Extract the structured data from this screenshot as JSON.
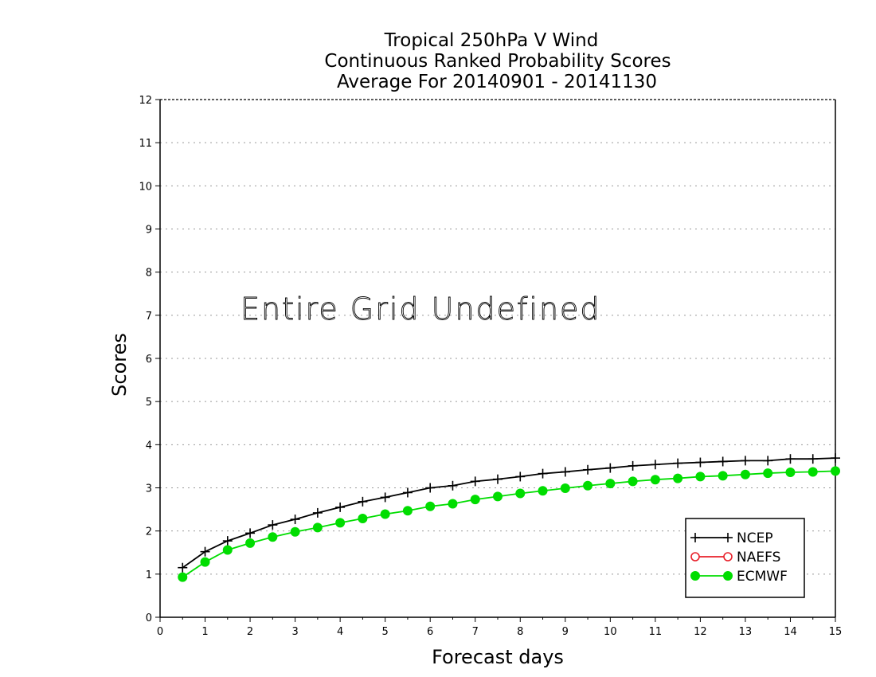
{
  "chart_data": {
    "type": "line",
    "title_lines": [
      "Tropical 250hPa V Wind",
      "Continuous Ranked Probability Scores",
      "Average For 20140901 - 20141130"
    ],
    "xlabel": "Forecast days",
    "ylabel": "Scores",
    "xlim": [
      0,
      15
    ],
    "ylim": [
      0,
      12
    ],
    "xticks": [
      0,
      1,
      2,
      3,
      4,
      5,
      6,
      7,
      8,
      9,
      10,
      11,
      12,
      13,
      14,
      15
    ],
    "yticks": [
      0,
      1,
      2,
      3,
      4,
      5,
      6,
      7,
      8,
      9,
      10,
      11,
      12
    ],
    "grid": true,
    "annotation": "Entire Grid Undefined",
    "legend_position": "bottom-right",
    "series": [
      {
        "name": "NCEP",
        "color": "#000000",
        "marker": "plus",
        "x": [
          0.5,
          1,
          1.5,
          2,
          2.5,
          3,
          3.5,
          4,
          4.5,
          5,
          5.5,
          6,
          6.5,
          7,
          7.5,
          8,
          8.5,
          9,
          9.5,
          10,
          10.5,
          11,
          11.5,
          12,
          12.5,
          13,
          13.5,
          14,
          14.5,
          15
        ],
        "y": [
          1.15,
          1.52,
          1.77,
          1.95,
          2.14,
          2.27,
          2.42,
          2.55,
          2.68,
          2.78,
          2.89,
          3.0,
          3.05,
          3.15,
          3.2,
          3.26,
          3.33,
          3.37,
          3.42,
          3.46,
          3.51,
          3.54,
          3.57,
          3.59,
          3.61,
          3.63,
          3.63,
          3.67,
          3.67,
          3.69
        ]
      },
      {
        "name": "NAEFS",
        "color": "#e8202a",
        "marker": "open-circle",
        "x": [],
        "y": []
      },
      {
        "name": "ECMWF",
        "color": "#00dd00",
        "marker": "filled-circle",
        "x": [
          0.5,
          1,
          1.5,
          2,
          2.5,
          3,
          3.5,
          4,
          4.5,
          5,
          5.5,
          6,
          6.5,
          7,
          7.5,
          8,
          8.5,
          9,
          9.5,
          10,
          10.5,
          11,
          11.5,
          12,
          12.5,
          13,
          13.5,
          14,
          14.5,
          15
        ],
        "y": [
          0.93,
          1.28,
          1.56,
          1.72,
          1.86,
          1.98,
          2.08,
          2.19,
          2.29,
          2.39,
          2.47,
          2.57,
          2.63,
          2.73,
          2.8,
          2.87,
          2.93,
          2.99,
          3.05,
          3.1,
          3.15,
          3.19,
          3.22,
          3.26,
          3.28,
          3.31,
          3.34,
          3.36,
          3.37,
          3.39
        ]
      }
    ]
  }
}
